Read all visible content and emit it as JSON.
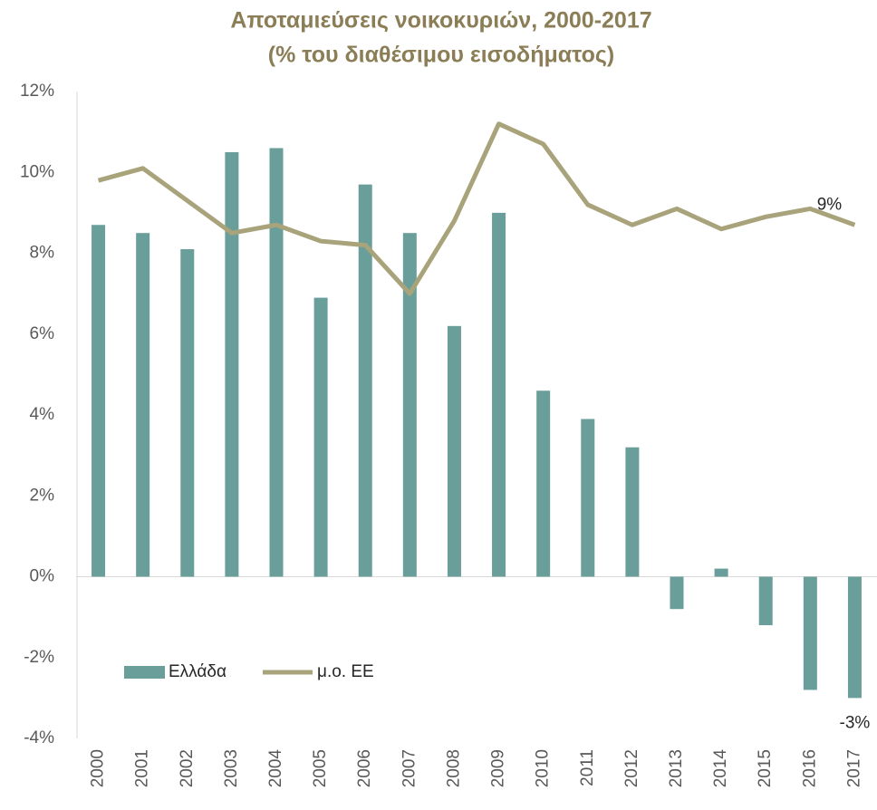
{
  "chart_data": {
    "type": "bar",
    "title": "Αποταμιεύσεις νοικοκυριών, 2000-2017",
    "subtitle": "(% του διαθέσιμου εισοδήματος)",
    "categories": [
      "2000",
      "2001",
      "2002",
      "2003",
      "2004",
      "2005",
      "2006",
      "2007",
      "2008",
      "2009",
      "2010",
      "2011",
      "2012",
      "2013",
      "2014",
      "2015",
      "2016",
      "2017"
    ],
    "series": [
      {
        "name": "Ελλάδα",
        "type": "bar",
        "color": "#6a9e9a",
        "values": [
          8.7,
          8.5,
          8.1,
          10.5,
          10.6,
          6.9,
          9.7,
          8.5,
          6.2,
          9.0,
          4.6,
          3.9,
          3.2,
          -0.8,
          0.2,
          -1.2,
          -2.8,
          -3.0
        ],
        "value_labels": [
          null,
          null,
          null,
          null,
          null,
          null,
          null,
          null,
          null,
          null,
          null,
          null,
          null,
          null,
          null,
          null,
          null,
          "-3%"
        ]
      },
      {
        "name": "μ.ο. ΕΕ",
        "type": "line",
        "color": "#a8a37a",
        "values": [
          9.8,
          10.1,
          9.3,
          8.5,
          8.7,
          8.3,
          8.2,
          7.0,
          8.8,
          11.2,
          10.7,
          9.2,
          8.7,
          9.1,
          8.6,
          8.9,
          9.1,
          8.7
        ],
        "value_labels": [
          null,
          null,
          null,
          null,
          null,
          null,
          null,
          null,
          null,
          null,
          null,
          null,
          null,
          null,
          null,
          null,
          null,
          "9%"
        ]
      }
    ],
    "ylim": [
      -4,
      12
    ],
    "yticks": [
      {
        "value": -4,
        "label": "-4%"
      },
      {
        "value": -2,
        "label": "-2%"
      },
      {
        "value": 0,
        "label": "0%"
      },
      {
        "value": 2,
        "label": "2%"
      },
      {
        "value": 4,
        "label": "4%"
      },
      {
        "value": 6,
        "label": "6%"
      },
      {
        "value": 8,
        "label": "8%"
      },
      {
        "value": 10,
        "label": "10%"
      },
      {
        "value": 12,
        "label": "12%"
      }
    ],
    "grid": false,
    "legend": "lower left"
  }
}
